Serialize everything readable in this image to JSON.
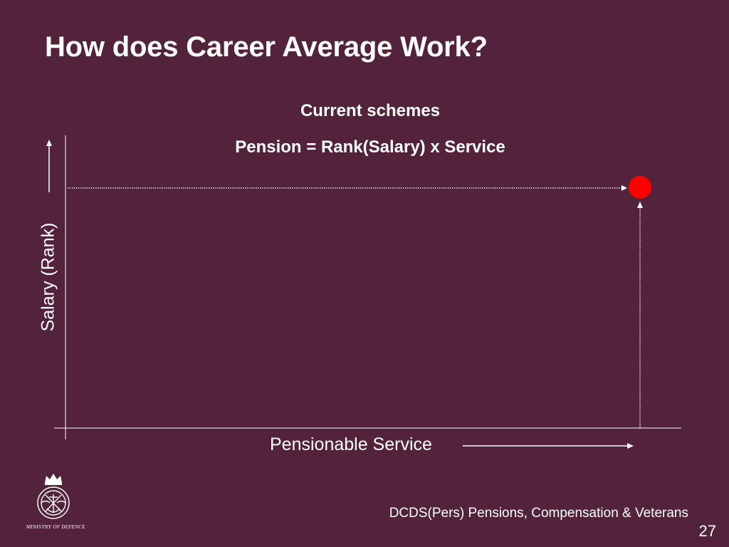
{
  "slide": {
    "title": "How does Career Average Work?",
    "subtitle": "Current schemes",
    "formula": "Pension = Rank(Salary) x Service",
    "footer": "DCDS(Pers) Pensions, Compensation & Veterans",
    "page_number": "27",
    "logo_text": "MINISTRY OF DEFENCE"
  },
  "diagram": {
    "y_axis_label": "Salary (Rank)",
    "x_axis_label": "Pensionable Service",
    "final_point_color": "#ff0000"
  },
  "colors": {
    "background": "#52233a",
    "text": "#ffffff"
  }
}
